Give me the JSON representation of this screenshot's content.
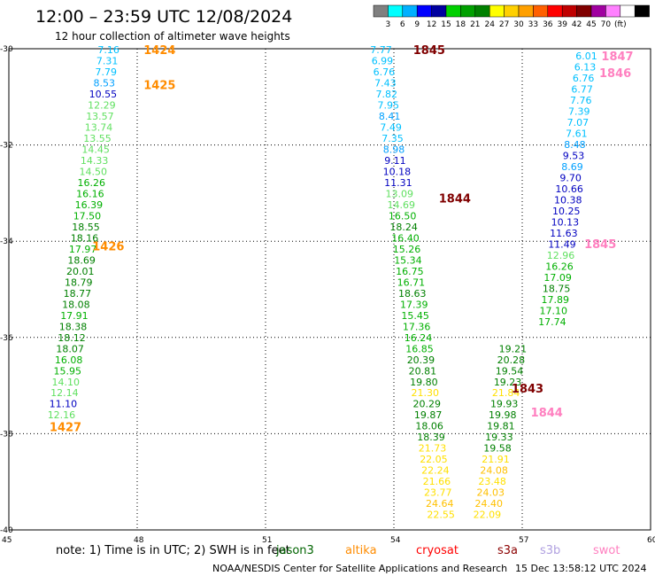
{
  "title": "12:00 – 23:59 UTC 12/08/2024",
  "subtitle": "12 hour collection of altimeter wave heights",
  "legend": {
    "colors": [
      "#808080",
      "#00ffff",
      "#00b0ff",
      "#0000ff",
      "#0000a0",
      "#00d000",
      "#00a000",
      "#008000",
      "#ffff00",
      "#ffd000",
      "#ffa000",
      "#ff6000",
      "#ff0000",
      "#c00000",
      "#800000",
      "#a000a0",
      "#ff80ff",
      "#ffffff",
      "#000000"
    ],
    "labels": [
      "3",
      "6",
      "9",
      "12",
      "15",
      "18",
      "21",
      "24",
      "27",
      "30",
      "33",
      "36",
      "39",
      "42",
      "45",
      "70",
      "(ft)"
    ]
  },
  "axes": {
    "lon_labels": [
      "45",
      "48",
      "51",
      "54",
      "57",
      "60"
    ],
    "lat_labels": [
      "-30",
      "-32",
      "-34",
      "-36",
      "-38",
      "-40"
    ]
  },
  "note_text": "note:  1) Time is in UTC; 2) SWH is in feet",
  "satellites": [
    {
      "name": "jason3",
      "color": "#006400"
    },
    {
      "name": "altika",
      "color": "#ff8c00"
    },
    {
      "name": "cryosat",
      "color": "#ff0000"
    },
    {
      "name": "s3a",
      "color": "#8b0000"
    },
    {
      "name": "s3b",
      "color": "#b0a0e0"
    },
    {
      "name": "swot",
      "color": "#ff80c0"
    }
  ],
  "credit": "NOAA/NESDIS Center for Satellite Applications and Research",
  "timestamp": "15 Dec 13:58:12 UTC 2024",
  "pass_labels": [
    {
      "text": "1424",
      "lon": 48.15,
      "lat": -30.02,
      "color": "#ff8c00"
    },
    {
      "text": "1425",
      "lon": 48.15,
      "lat": -30.75,
      "color": "#ff8c00"
    },
    {
      "text": "1426",
      "lon": 46.95,
      "lat": -34.1,
      "color": "#ff8c00"
    },
    {
      "text": "1427",
      "lon": 45.95,
      "lat": -37.85,
      "color": "#ff8c00"
    },
    {
      "text": "1845",
      "lon": 54.45,
      "lat": -30.02,
      "color": "#800000"
    },
    {
      "text": "1844",
      "lon": 55.05,
      "lat": -33.1,
      "color": "#800000"
    },
    {
      "text": "1843",
      "lon": 56.75,
      "lat": -37.05,
      "color": "#800000"
    },
    {
      "text": "1847",
      "lon": 58.85,
      "lat": -30.15,
      "color": "#ff80c0"
    },
    {
      "text": "1846",
      "lon": 58.8,
      "lat": -30.5,
      "color": "#ff80c0"
    },
    {
      "text": "1845",
      "lon": 58.45,
      "lat": -34.05,
      "color": "#ff80c0"
    },
    {
      "text": "1844",
      "lon": 57.2,
      "lat": -37.55,
      "color": "#ff80c0"
    }
  ],
  "tracks": [
    {
      "name": "altika-west",
      "points": [
        {
          "t": "7.16",
          "lon": 47.33,
          "lat": -30.02,
          "c": "#00c0ff"
        },
        {
          "t": "7.31",
          "lon": 47.3,
          "lat": -30.25,
          "c": "#00c0ff"
        },
        {
          "t": "7.79",
          "lon": 47.27,
          "lat": -30.48,
          "c": "#00c0ff"
        },
        {
          "t": "8.53",
          "lon": 47.23,
          "lat": -30.71,
          "c": "#00a0ff"
        },
        {
          "t": "10.55",
          "lon": 47.2,
          "lat": -30.94,
          "c": "#0000c0"
        },
        {
          "t": "12.29",
          "lon": 47.17,
          "lat": -31.17,
          "c": "#60e060"
        },
        {
          "t": "13.57",
          "lon": 47.13,
          "lat": -31.4,
          "c": "#60e060"
        },
        {
          "t": "13.74",
          "lon": 47.1,
          "lat": -31.63,
          "c": "#60e060"
        },
        {
          "t": "13.55",
          "lon": 47.07,
          "lat": -31.86,
          "c": "#60e060"
        },
        {
          "t": "14.45",
          "lon": 47.03,
          "lat": -32.09,
          "c": "#60e060"
        },
        {
          "t": "14.33",
          "lon": 47.0,
          "lat": -32.32,
          "c": "#60e060"
        },
        {
          "t": "14.50",
          "lon": 46.97,
          "lat": -32.55,
          "c": "#60e060"
        },
        {
          "t": "16.26",
          "lon": 46.93,
          "lat": -32.78,
          "c": "#00b000"
        },
        {
          "t": "16.16",
          "lon": 46.9,
          "lat": -33.01,
          "c": "#00b000"
        },
        {
          "t": "16.39",
          "lon": 46.87,
          "lat": -33.24,
          "c": "#00b000"
        },
        {
          "t": "17.50",
          "lon": 46.83,
          "lat": -33.47,
          "c": "#00b000"
        },
        {
          "t": "18.55",
          "lon": 46.8,
          "lat": -33.7,
          "c": "#008000"
        },
        {
          "t": "18.16",
          "lon": 46.77,
          "lat": -33.93,
          "c": "#008000"
        },
        {
          "t": "17.97",
          "lon": 46.73,
          "lat": -34.16,
          "c": "#00b000"
        },
        {
          "t": "18.69",
          "lon": 46.7,
          "lat": -34.39,
          "c": "#008000"
        },
        {
          "t": "20.01",
          "lon": 46.67,
          "lat": -34.62,
          "c": "#008000"
        },
        {
          "t": "18.79",
          "lon": 46.63,
          "lat": -34.85,
          "c": "#008000"
        },
        {
          "t": "18.77",
          "lon": 46.6,
          "lat": -35.08,
          "c": "#008000"
        },
        {
          "t": "18.08",
          "lon": 46.57,
          "lat": -35.31,
          "c": "#008000"
        },
        {
          "t": "17.91",
          "lon": 46.53,
          "lat": -35.54,
          "c": "#00b000"
        },
        {
          "t": "18.38",
          "lon": 46.5,
          "lat": -35.77,
          "c": "#008000"
        },
        {
          "t": "18.12",
          "lon": 46.47,
          "lat": -36.0,
          "c": "#008000"
        },
        {
          "t": "18.07",
          "lon": 46.43,
          "lat": -36.23,
          "c": "#008000"
        },
        {
          "t": "16.08",
          "lon": 46.4,
          "lat": -36.46,
          "c": "#00b000"
        },
        {
          "t": "15.95",
          "lon": 46.37,
          "lat": -36.69,
          "c": "#00b000"
        },
        {
          "t": "14.10",
          "lon": 46.33,
          "lat": -36.92,
          "c": "#60e060"
        },
        {
          "t": "12.14",
          "lon": 46.3,
          "lat": -37.15,
          "c": "#60e060"
        },
        {
          "t": "11.10",
          "lon": 46.27,
          "lat": -37.38,
          "c": "#0000c0"
        },
        {
          "t": "12.16",
          "lon": 46.23,
          "lat": -37.61,
          "c": "#60e060"
        }
      ]
    },
    {
      "name": "s3a-1845",
      "points": [
        {
          "t": "7.77",
          "lon": 53.7,
          "lat": -30.02,
          "c": "#00c0ff"
        },
        {
          "t": "6.99",
          "lon": 53.73,
          "lat": -30.25,
          "c": "#00c0ff"
        },
        {
          "t": "6.76",
          "lon": 53.77,
          "lat": -30.48,
          "c": "#00c0ff"
        },
        {
          "t": "7.43",
          "lon": 53.8,
          "lat": -30.71,
          "c": "#00c0ff"
        },
        {
          "t": "7.82",
          "lon": 53.83,
          "lat": -30.94,
          "c": "#00c0ff"
        },
        {
          "t": "7.95",
          "lon": 53.87,
          "lat": -31.17,
          "c": "#00c0ff"
        },
        {
          "t": "8.41",
          "lon": 53.9,
          "lat": -31.4,
          "c": "#00a0ff"
        },
        {
          "t": "7.49",
          "lon": 53.93,
          "lat": -31.63,
          "c": "#00c0ff"
        },
        {
          "t": "7.35",
          "lon": 53.97,
          "lat": -31.86,
          "c": "#00c0ff"
        },
        {
          "t": "8.98",
          "lon": 54.0,
          "lat": -32.09,
          "c": "#00a0ff"
        },
        {
          "t": "9.11",
          "lon": 54.03,
          "lat": -32.32,
          "c": "#0000c0"
        },
        {
          "t": "10.18",
          "lon": 54.07,
          "lat": -32.55,
          "c": "#0000c0"
        },
        {
          "t": "11.31",
          "lon": 54.1,
          "lat": -32.78,
          "c": "#0000c0"
        },
        {
          "t": "13.09",
          "lon": 54.13,
          "lat": -33.01,
          "c": "#60e060"
        },
        {
          "t": "14.69",
          "lon": 54.17,
          "lat": -33.24,
          "c": "#60e060"
        },
        {
          "t": "16.50",
          "lon": 54.2,
          "lat": -33.47,
          "c": "#00b000"
        },
        {
          "t": "18.24",
          "lon": 54.23,
          "lat": -33.7,
          "c": "#008000"
        },
        {
          "t": "16.40",
          "lon": 54.27,
          "lat": -33.93,
          "c": "#00b000"
        },
        {
          "t": "15.26",
          "lon": 54.3,
          "lat": -34.16,
          "c": "#00b000"
        },
        {
          "t": "15.34",
          "lon": 54.33,
          "lat": -34.39,
          "c": "#00b000"
        },
        {
          "t": "16.75",
          "lon": 54.37,
          "lat": -34.62,
          "c": "#00b000"
        },
        {
          "t": "16.71",
          "lon": 54.4,
          "lat": -34.85,
          "c": "#00b000"
        },
        {
          "t": "18.63",
          "lon": 54.43,
          "lat": -35.08,
          "c": "#008000"
        },
        {
          "t": "17.39",
          "lon": 54.47,
          "lat": -35.31,
          "c": "#00b000"
        },
        {
          "t": "15.45",
          "lon": 54.5,
          "lat": -35.54,
          "c": "#00b000"
        },
        {
          "t": "17.36",
          "lon": 54.53,
          "lat": -35.77,
          "c": "#00b000"
        },
        {
          "t": "16.24",
          "lon": 54.57,
          "lat": -36.0,
          "c": "#00b000"
        },
        {
          "t": "16.85",
          "lon": 54.6,
          "lat": -36.23,
          "c": "#00b000"
        },
        {
          "t": "20.39",
          "lon": 54.63,
          "lat": -36.46,
          "c": "#008000"
        },
        {
          "t": "20.81",
          "lon": 54.67,
          "lat": -36.69,
          "c": "#008000"
        },
        {
          "t": "19.80",
          "lon": 54.7,
          "lat": -36.92,
          "c": "#008000"
        },
        {
          "t": "21.30",
          "lon": 54.73,
          "lat": -37.15,
          "c": "#ffe000"
        },
        {
          "t": "20.29",
          "lon": 54.77,
          "lat": -37.38,
          "c": "#008000"
        },
        {
          "t": "19.87",
          "lon": 54.8,
          "lat": -37.61,
          "c": "#008000"
        },
        {
          "t": "18.06",
          "lon": 54.83,
          "lat": -37.84,
          "c": "#008000"
        },
        {
          "t": "18.39",
          "lon": 54.87,
          "lat": -38.07,
          "c": "#008000"
        },
        {
          "t": "21.73",
          "lon": 54.9,
          "lat": -38.3,
          "c": "#ffe000"
        },
        {
          "t": "22.05",
          "lon": 54.93,
          "lat": -38.53,
          "c": "#ffe000"
        },
        {
          "t": "22.24",
          "lon": 54.97,
          "lat": -38.76,
          "c": "#ffe000"
        },
        {
          "t": "21.66",
          "lon": 55.0,
          "lat": -38.99,
          "c": "#ffe000"
        },
        {
          "t": "23.77",
          "lon": 55.03,
          "lat": -39.22,
          "c": "#ffe000"
        },
        {
          "t": "24.64",
          "lon": 55.07,
          "lat": -39.45,
          "c": "#ffc000"
        },
        {
          "t": "22.55",
          "lon": 55.1,
          "lat": -39.68,
          "c": "#ffe000"
        }
      ]
    },
    {
      "name": "s3a-1843",
      "points": [
        {
          "t": "19.21",
          "lon": 56.78,
          "lat": -36.23,
          "c": "#008000"
        },
        {
          "t": "20.28",
          "lon": 56.74,
          "lat": -36.46,
          "c": "#008000"
        },
        {
          "t": "19.54",
          "lon": 56.7,
          "lat": -36.69,
          "c": "#008000"
        },
        {
          "t": "19.23",
          "lon": 56.66,
          "lat": -36.92,
          "c": "#008000"
        },
        {
          "t": "21.84",
          "lon": 56.62,
          "lat": -37.15,
          "c": "#ffe000"
        },
        {
          "t": "19.93",
          "lon": 56.58,
          "lat": -37.38,
          "c": "#008000"
        },
        {
          "t": "19.98",
          "lon": 56.54,
          "lat": -37.61,
          "c": "#008000"
        },
        {
          "t": "19.81",
          "lon": 56.5,
          "lat": -37.84,
          "c": "#008000"
        },
        {
          "t": "19.33",
          "lon": 56.46,
          "lat": -38.07,
          "c": "#008000"
        },
        {
          "t": "19.58",
          "lon": 56.42,
          "lat": -38.3,
          "c": "#008000"
        },
        {
          "t": "21.91",
          "lon": 56.38,
          "lat": -38.53,
          "c": "#ffe000"
        },
        {
          "t": "24.08",
          "lon": 56.34,
          "lat": -38.76,
          "c": "#ffc000"
        },
        {
          "t": "23.48",
          "lon": 56.3,
          "lat": -38.99,
          "c": "#ffe000"
        },
        {
          "t": "24.03",
          "lon": 56.26,
          "lat": -39.22,
          "c": "#ffc000"
        },
        {
          "t": "24.40",
          "lon": 56.22,
          "lat": -39.45,
          "c": "#ffc000"
        },
        {
          "t": "22.09",
          "lon": 56.18,
          "lat": -39.68,
          "c": "#ffe000"
        }
      ]
    },
    {
      "name": "swot-east",
      "points": [
        {
          "t": "6.01",
          "lon": 58.5,
          "lat": -30.15,
          "c": "#00c0ff"
        },
        {
          "t": "6.13",
          "lon": 58.47,
          "lat": -30.38,
          "c": "#00c0ff"
        },
        {
          "t": "6.76",
          "lon": 58.43,
          "lat": -30.61,
          "c": "#00c0ff"
        },
        {
          "t": "6.77",
          "lon": 58.4,
          "lat": -30.84,
          "c": "#00c0ff"
        },
        {
          "t": "7.76",
          "lon": 58.37,
          "lat": -31.07,
          "c": "#00c0ff"
        },
        {
          "t": "7.39",
          "lon": 58.33,
          "lat": -31.3,
          "c": "#00c0ff"
        },
        {
          "t": "7.07",
          "lon": 58.3,
          "lat": -31.53,
          "c": "#00c0ff"
        },
        {
          "t": "7.61",
          "lon": 58.27,
          "lat": -31.76,
          "c": "#00c0ff"
        },
        {
          "t": "8.48",
          "lon": 58.23,
          "lat": -31.99,
          "c": "#00a0ff"
        },
        {
          "t": "9.53",
          "lon": 58.2,
          "lat": -32.22,
          "c": "#0000c0"
        },
        {
          "t": "8.69",
          "lon": 58.17,
          "lat": -32.45,
          "c": "#00a0ff"
        },
        {
          "t": "9.70",
          "lon": 58.13,
          "lat": -32.68,
          "c": "#0000c0"
        },
        {
          "t": "10.66",
          "lon": 58.1,
          "lat": -32.91,
          "c": "#0000c0"
        },
        {
          "t": "10.38",
          "lon": 58.07,
          "lat": -33.14,
          "c": "#0000c0"
        },
        {
          "t": "10.25",
          "lon": 58.03,
          "lat": -33.37,
          "c": "#0000c0"
        },
        {
          "t": "10.13",
          "lon": 58.0,
          "lat": -33.6,
          "c": "#0000c0"
        },
        {
          "t": "11.63",
          "lon": 57.97,
          "lat": -33.83,
          "c": "#0000c0"
        },
        {
          "t": "11.49",
          "lon": 57.93,
          "lat": -34.06,
          "c": "#0000c0"
        },
        {
          "t": "12.96",
          "lon": 57.9,
          "lat": -34.29,
          "c": "#60e060"
        },
        {
          "t": "16.26",
          "lon": 57.87,
          "lat": -34.52,
          "c": "#00b000"
        },
        {
          "t": "17.09",
          "lon": 57.83,
          "lat": -34.75,
          "c": "#00b000"
        },
        {
          "t": "18.75",
          "lon": 57.8,
          "lat": -34.98,
          "c": "#008000"
        },
        {
          "t": "17.89",
          "lon": 57.77,
          "lat": -35.21,
          "c": "#00b000"
        },
        {
          "t": "17.10",
          "lon": 57.73,
          "lat": -35.44,
          "c": "#00b000"
        },
        {
          "t": "17.74",
          "lon": 57.7,
          "lat": -35.67,
          "c": "#00b000"
        }
      ]
    }
  ]
}
